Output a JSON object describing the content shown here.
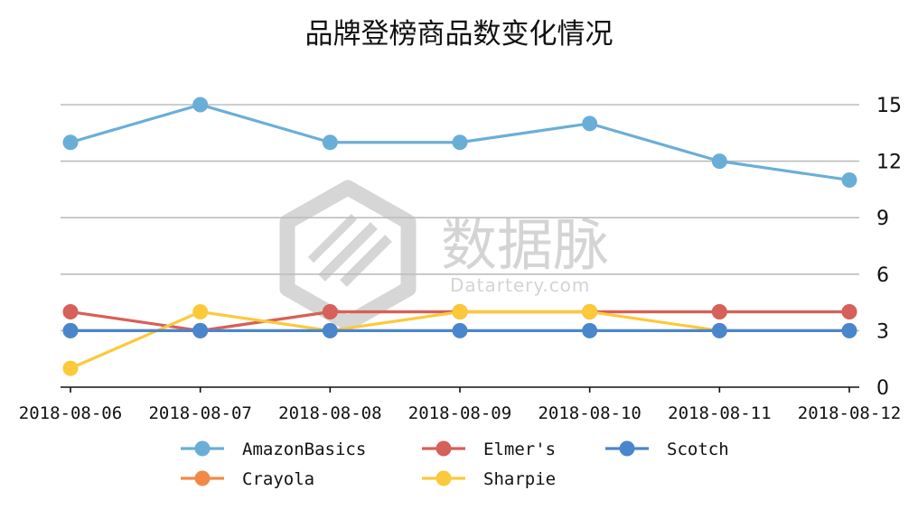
{
  "chart_data": {
    "type": "line",
    "title": "品牌登榜商品数变化情况",
    "categories": [
      "2018-08-06",
      "2018-08-07",
      "2018-08-08",
      "2018-08-09",
      "2018-08-10",
      "2018-08-11",
      "2018-08-12"
    ],
    "yticks": [
      0,
      3,
      6,
      9,
      12,
      15
    ],
    "ylim": [
      0,
      15
    ],
    "y_axis_side": "right",
    "grid": "horizontal",
    "legend_position": "bottom",
    "series": [
      {
        "name": "AmazonBasics",
        "color": "#6aaed8",
        "values": [
          13,
          15,
          13,
          13,
          14,
          12,
          11
        ]
      },
      {
        "name": "Crayola",
        "color": "#f08a46",
        "values": [
          3,
          3,
          4,
          4,
          4,
          4,
          4
        ]
      },
      {
        "name": "Elmer's",
        "color": "#d6605a",
        "values": [
          4,
          3,
          4,
          4,
          4,
          4,
          4
        ]
      },
      {
        "name": "Sharpie",
        "color": "#fcc93a",
        "values": [
          1,
          4,
          3,
          4,
          4,
          3,
          3
        ]
      },
      {
        "name": "Scotch",
        "color": "#4a86cc",
        "values": [
          3,
          3,
          3,
          3,
          3,
          3,
          3
        ]
      }
    ],
    "draw_order": [
      "Crayola",
      "Elmer's",
      "AmazonBasics",
      "Sharpie",
      "Scotch"
    ],
    "legend_order": [
      "AmazonBasics",
      "Elmer's",
      "Scotch",
      "Crayola",
      "Sharpie"
    ]
  },
  "watermark": {
    "cn": "数据脉",
    "en": "Datartery.com"
  }
}
